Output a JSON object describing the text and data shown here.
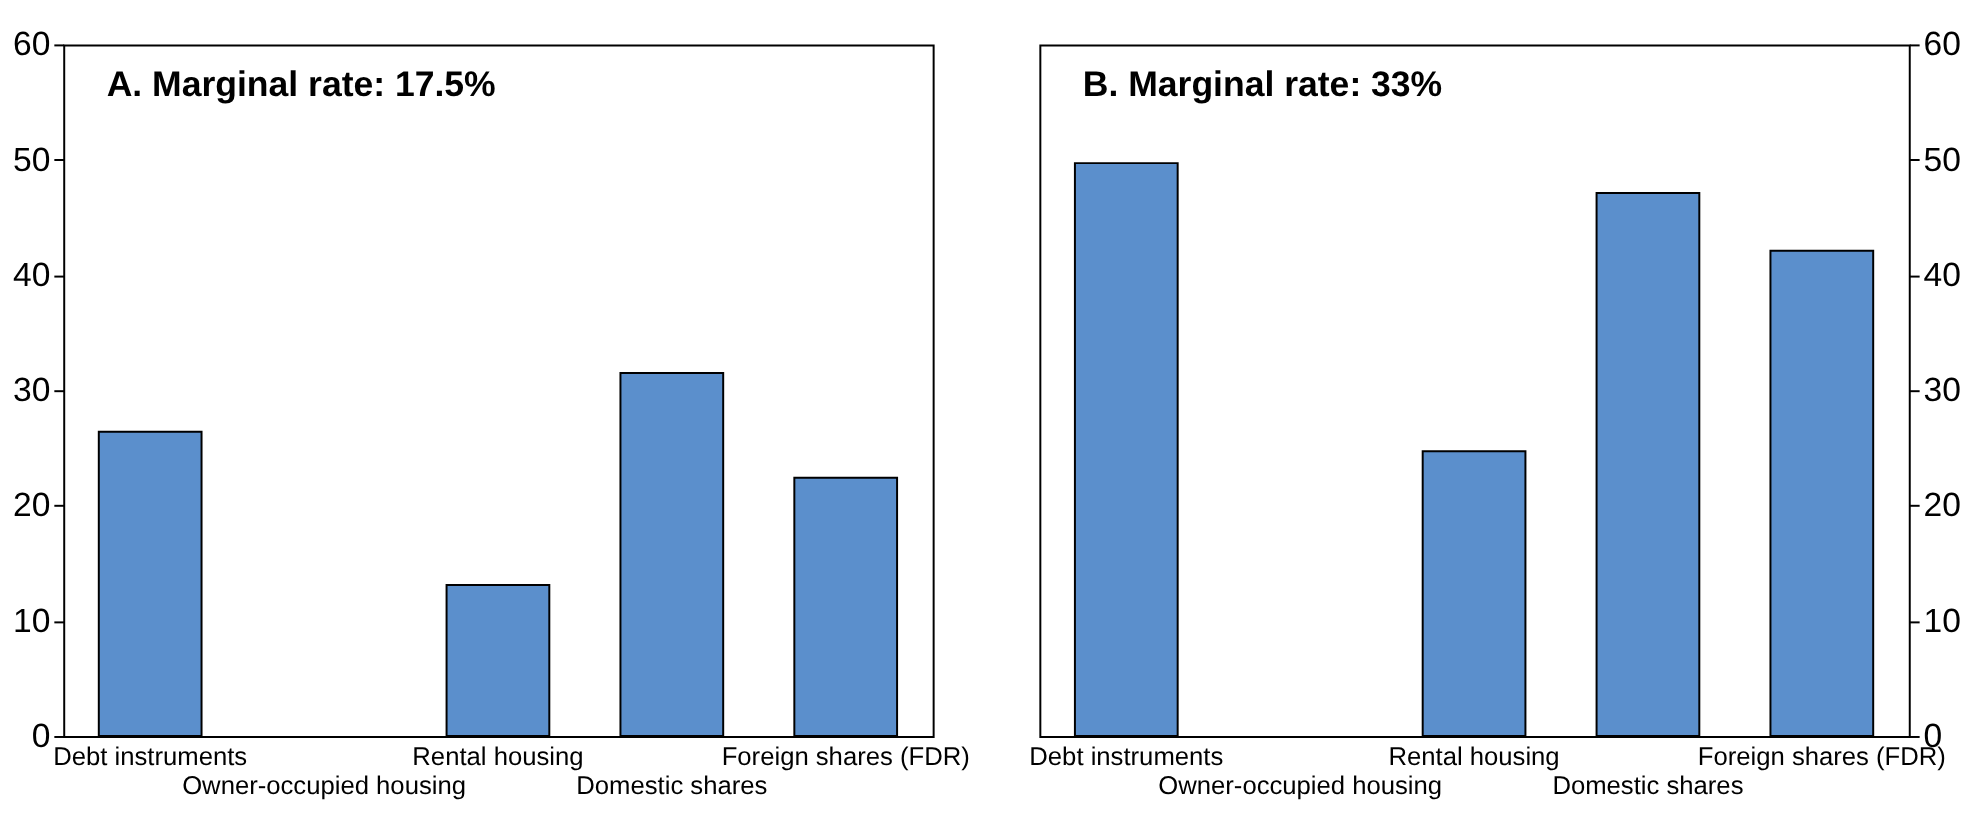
{
  "chart_data": [
    {
      "type": "bar",
      "title": "A. Marginal rate: 17.5%",
      "categories": [
        "Debt instruments",
        "Owner-occupied housing",
        "Rental housing",
        "Domestic shares",
        "Foreign shares (FDR)"
      ],
      "values": [
        26.4,
        null,
        13.1,
        31.5,
        22.4
      ],
      "color": "#5b8fcc",
      "ylim": [
        0,
        60
      ],
      "yticks": [
        0,
        10,
        20,
        30,
        40,
        50,
        60
      ],
      "grid": false
    },
    {
      "type": "bar",
      "title": "B. Marginal rate: 33%",
      "categories": [
        "Debt instruments",
        "Owner-occupied housing",
        "Rental housing",
        "Domestic shares",
        "Foreign shares (FDR)"
      ],
      "values": [
        49.7,
        null,
        24.7,
        47.1,
        42.1
      ],
      "color": "#5b8fcc",
      "ylim": [
        0,
        60
      ],
      "yticks": [
        0,
        10,
        20,
        30,
        40,
        50,
        60
      ],
      "grid": false
    }
  ]
}
